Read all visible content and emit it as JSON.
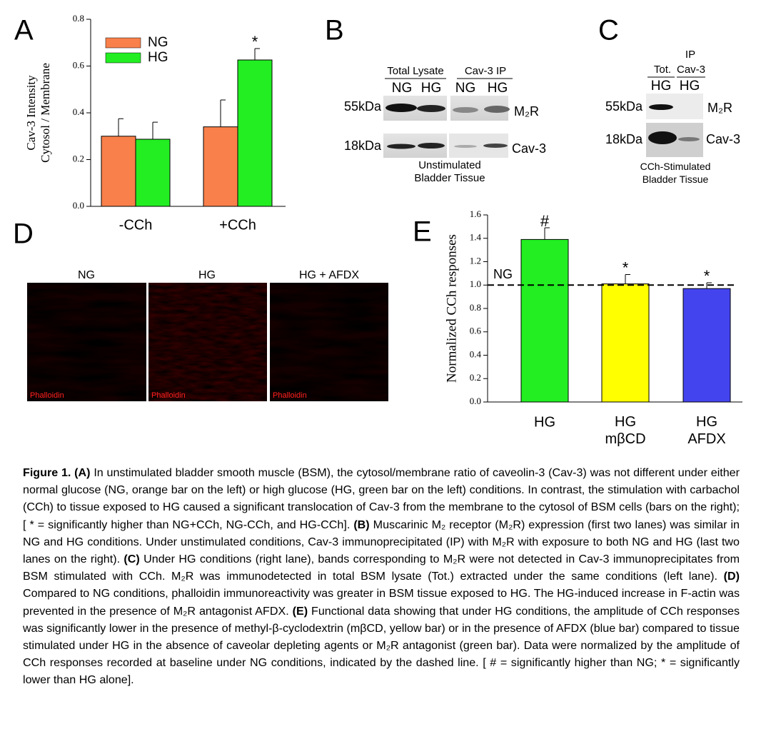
{
  "panels": {
    "a": "A",
    "b": "B",
    "c": "C",
    "d": "D",
    "e": "E"
  },
  "chart_data": [
    {
      "type": "bar",
      "ylabel": "Cav-3 Intensity\nCytosol / Membrane",
      "categories": [
        "-CCh",
        "+CCh"
      ],
      "series": [
        {
          "name": "NG",
          "color": "#f9804a",
          "values": [
            0.3,
            0.34
          ],
          "errors": [
            0.075,
            0.115
          ],
          "annotations": [
            null,
            null
          ]
        },
        {
          "name": "HG",
          "color": "#22ee22",
          "values": [
            0.287,
            0.626
          ],
          "errors": [
            0.073,
            0.049
          ],
          "annotations": [
            null,
            "*"
          ]
        }
      ],
      "ylim": [
        0,
        0.8
      ],
      "yticks": [
        {
          "value": 0,
          "label": "0.0"
        },
        0.2,
        0.4,
        0.6,
        0.8
      ],
      "legend": "upper left"
    },
    {
      "type": "bar",
      "ylabel": "Normalized CCh responses",
      "categories": [
        "HG",
        "HG\nmβCD",
        "HG\nAFDX"
      ],
      "values": [
        1.39,
        1.01,
        0.97
      ],
      "errors": [
        0.1,
        0.08,
        0.05
      ],
      "colors": [
        "#22ee22",
        "#ffff00",
        "#4444ee"
      ],
      "annotations": [
        "#",
        "*",
        "*"
      ],
      "reference_line": {
        "value": {
          "value": 1.0,
          "label": "NG"
        }
      },
      "ylim": [
        0,
        1.6
      ],
      "yticks": [
        {
          "value": 0,
          "label": "0.0"
        },
        0.2,
        0.4,
        0.6,
        0.8,
        {
          "value": 1.0,
          "label": "1.0"
        },
        1.2,
        1.4,
        1.6
      ]
    }
  ],
  "blot_b": {
    "groups": [
      "Total Lysate",
      "Cav-3 IP"
    ],
    "lanes": [
      "NG",
      "HG",
      "NG",
      "HG"
    ],
    "markers": [
      "55kDa",
      "18kDa"
    ],
    "proteins": [
      "M₂R",
      "Cav-3"
    ],
    "caption": "Unstimulated\nBladder Tissue"
  },
  "blot_c": {
    "ip": "IP",
    "groups": [
      "Tot.",
      "Cav-3"
    ],
    "lanes": [
      "HG",
      "HG"
    ],
    "markers": [
      "55kDa",
      "18kDa"
    ],
    "proteins": [
      "M₂R",
      "Cav-3"
    ],
    "caption": "CCh-Stimulated\nBladder Tissue"
  },
  "images_d": {
    "titles": [
      "NG",
      "HG",
      "HG + AFDX"
    ],
    "stains": [
      "Phalloidin",
      "Phalloidin",
      "Phalloidin"
    ]
  },
  "caption": [
    {
      "text": "Figure 1. (A)",
      "bold": true
    },
    {
      "text": " In unstimulated bladder smooth muscle (BSM), the cytosol/membrane ratio of caveolin-3 (Cav-3) was not different under either normal glucose (NG, orange bar on the left) or high glucose (HG, green bar on the left) conditions. In contrast, the stimulation with carbachol (CCh) to tissue exposed to HG caused a significant translocation of Cav-3 from the membrane to the cytosol of BSM cells (bars on the right); [ * = significantly higher than NG+CCh, NG-CCh, and HG-CCh]. "
    },
    {
      "text": "(B)",
      "bold": true
    },
    {
      "text": " Muscarinic M₂ receptor (M₂R) expression (first two lanes) was similar in NG and HG conditions. Under unstimulated conditions, Cav-3 immunoprecipitated (IP) with M₂R with exposure to both NG and HG (last two lanes on the right). "
    },
    {
      "text": "(C)",
      "bold": true
    },
    {
      "text": " Under HG conditions (right lane), bands corresponding to M₂R were not detected in Cav-3 immunoprecipitates from BSM stimulated with CCh.  M₂R was immunodetected in total BSM lysate (Tot.) extracted under the same conditions (left lane). "
    },
    {
      "text": "(D)",
      "bold": true
    },
    {
      "text": " Compared to NG conditions, phalloidin immunoreactivity was greater in BSM tissue exposed to HG. The HG-induced increase in F-actin was prevented in the presence of M₂R antagonist AFDX. "
    },
    {
      "text": "(E)",
      "bold": true
    },
    {
      "text": " Functional data showing that under HG conditions, the amplitude of CCh responses was significantly lower in the presence of methyl-β-cyclodextrin (mβCD, yellow bar) or in the presence of AFDX (blue bar) compared to tissue stimulated under HG in the absence of caveolar depleting agents or M₂R antagonist (green bar). Data were normalized by the amplitude of CCh responses recorded at baseline under NG conditions, indicated by the dashed line. [ # = significantly higher than NG; * = significantly lower than HG alone]."
    }
  ]
}
